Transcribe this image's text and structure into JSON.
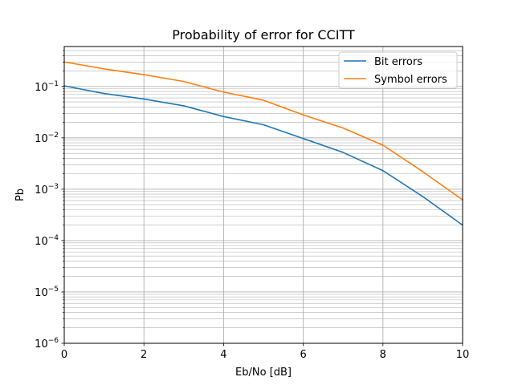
{
  "chart_data": {
    "type": "line",
    "title": "Probability of error for CCITT",
    "xlabel": "Eb/No [dB]",
    "ylabel": "Pb",
    "xlim": [
      0,
      10
    ],
    "ylim": [
      1e-06,
      0.6
    ],
    "yscale": "log",
    "grid": "major and minor",
    "legend_loc": "upper right",
    "x_ticks": [
      "0",
      "2",
      "4",
      "6",
      "8",
      "10"
    ],
    "y_ticks": [
      {
        "base": "10",
        "exp": "−6"
      },
      {
        "base": "10",
        "exp": "−5"
      },
      {
        "base": "10",
        "exp": "−4"
      },
      {
        "base": "10",
        "exp": "−3"
      },
      {
        "base": "10",
        "exp": "−2"
      },
      {
        "base": "10",
        "exp": "−1"
      }
    ],
    "x": [
      0,
      1,
      2,
      3,
      4,
      5,
      6,
      7,
      8,
      9,
      10
    ],
    "series": [
      {
        "name": "Bit errors",
        "color": "#1f77b4",
        "values": [
          0.103,
          0.073,
          0.057,
          0.042,
          0.026,
          0.018,
          0.0097,
          0.0052,
          0.0023,
          0.00072,
          0.0002
        ]
      },
      {
        "name": "Symbol errors",
        "color": "#ff7f0e",
        "values": [
          0.3,
          0.22,
          0.17,
          0.125,
          0.078,
          0.054,
          0.028,
          0.0155,
          0.0072,
          0.0022,
          0.00062
        ]
      }
    ]
  }
}
